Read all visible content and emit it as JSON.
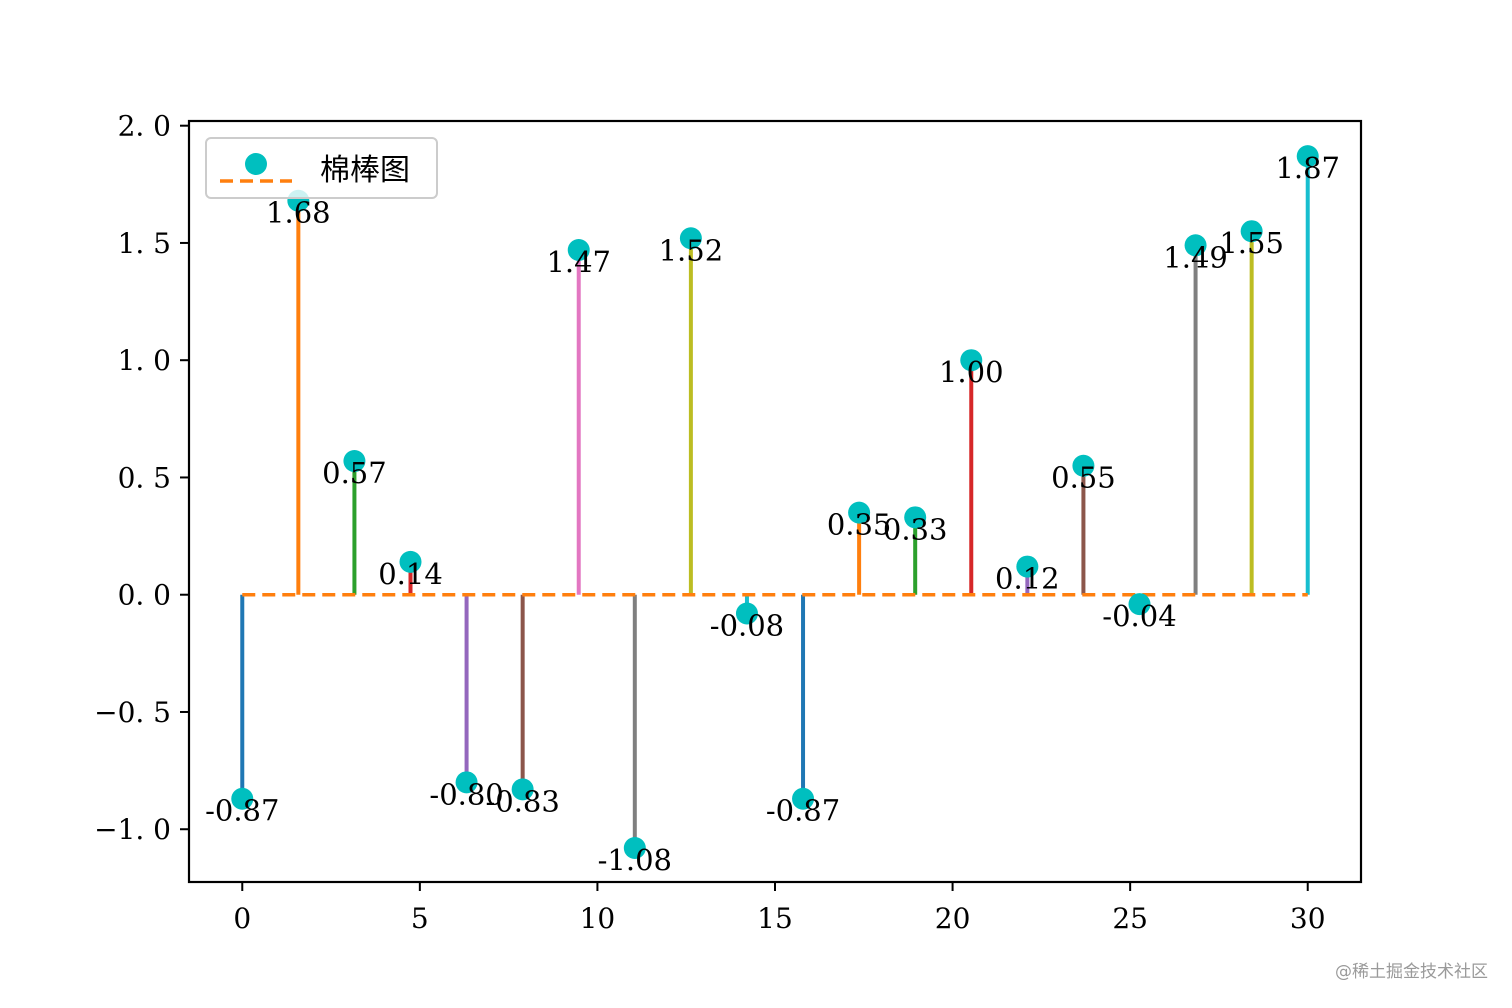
{
  "chart_data": {
    "type": "stem",
    "x": [
      0,
      1.5789,
      3.1579,
      4.7368,
      6.3158,
      7.8947,
      9.4737,
      11.0526,
      12.6316,
      14.2105,
      15.7895,
      17.3684,
      18.9474,
      20.5263,
      22.1053,
      23.6842,
      25.2632,
      26.8421,
      28.4211,
      30
    ],
    "values": [
      -0.87,
      1.68,
      0.57,
      0.14,
      -0.8,
      -0.83,
      1.47,
      -1.08,
      1.52,
      -0.08,
      -0.87,
      0.35,
      0.33,
      1.0,
      0.12,
      0.55,
      -0.04,
      1.49,
      1.55,
      1.87
    ],
    "labels": [
      "-0.87",
      "1.68",
      "0.57",
      "0.14",
      "-0.80",
      "-0.83",
      "1.47",
      "-1.08",
      "1.52",
      "-0.08",
      "-0.87",
      "0.35",
      "0.33",
      "1.00",
      "0.12",
      "0.55",
      "-0.04",
      "1.49",
      "1.55",
      "1.87"
    ],
    "stem_colors": [
      "#1f77b4",
      "#ff7f0e",
      "#2ca02c",
      "#d62728",
      "#9467bd",
      "#8c564b",
      "#e377c2",
      "#7f7f7f",
      "#bcbd22",
      "#17becf",
      "#1f77b4",
      "#ff7f0e",
      "#2ca02c",
      "#d62728",
      "#9467bd",
      "#8c564b",
      "#e377c2",
      "#7f7f7f",
      "#bcbd22",
      "#17becf"
    ],
    "marker_color": "#00bfbf",
    "baseline_color": "#ff7f0e",
    "baseline_style": "dashed",
    "xlim": [
      -1.5,
      31.5
    ],
    "ylim": [
      -1.225,
      2.02
    ],
    "xticks": [
      0,
      5,
      10,
      15,
      20,
      25,
      30
    ],
    "xtick_labels": [
      "0",
      "5",
      "10",
      "15",
      "20",
      "25",
      "30"
    ],
    "yticks": [
      -1.0,
      -0.5,
      0.0,
      0.5,
      1.0,
      1.5,
      2.0
    ],
    "ytick_labels": [
      "−1. 0",
      "−0. 5",
      "0. 0",
      "0. 5",
      "1. 0",
      "1. 5",
      "2. 0"
    ],
    "legend": {
      "label": "棉棒图",
      "position": "upper-left"
    },
    "grid": false
  },
  "watermark": "@稀土掘金技术社区"
}
